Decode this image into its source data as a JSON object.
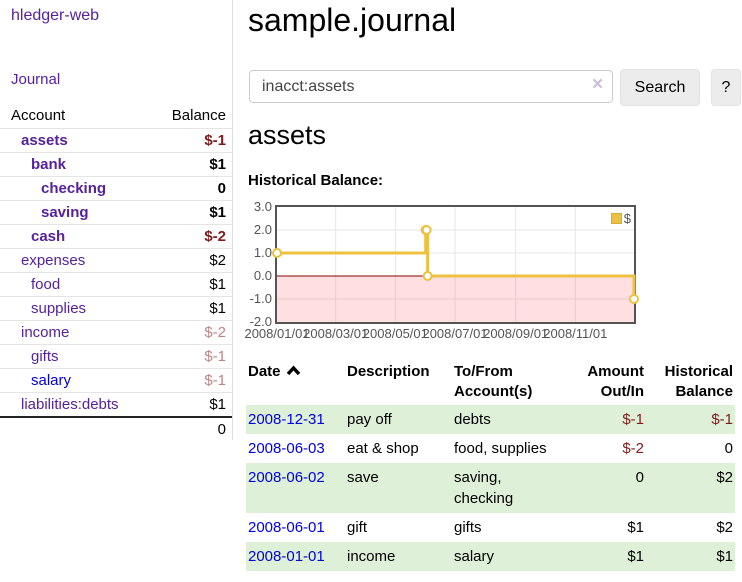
{
  "brand": "hledger-web",
  "nav": {
    "journal": "Journal"
  },
  "sidebar": {
    "col_account": "Account",
    "col_balance": "Balance",
    "rows": [
      {
        "account": "assets",
        "balance": "$-1",
        "indent": 0,
        "emphasis": true,
        "balance_class": "neg-strong",
        "link_color": "purple"
      },
      {
        "account": "bank",
        "balance": "$1",
        "indent": 1,
        "emphasis": true,
        "balance_class": "pos-strong",
        "link_color": "purple"
      },
      {
        "account": "checking",
        "balance": "0",
        "indent": 2,
        "emphasis": true,
        "balance_class": "pos-strong",
        "link_color": "purple"
      },
      {
        "account": "saving",
        "balance": "$1",
        "indent": 2,
        "emphasis": true,
        "balance_class": "pos-strong",
        "link_color": "purple"
      },
      {
        "account": "cash",
        "balance": "$-2",
        "indent": 1,
        "emphasis": true,
        "balance_class": "neg-strong",
        "link_color": "purple"
      },
      {
        "account": "expenses",
        "balance": "$2",
        "indent": 0,
        "emphasis": false,
        "balance_class": "pos",
        "link_color": "purple"
      },
      {
        "account": "food",
        "balance": "$1",
        "indent": 1,
        "emphasis": false,
        "balance_class": "pos",
        "link_color": "purple"
      },
      {
        "account": "supplies",
        "balance": "$1",
        "indent": 1,
        "emphasis": false,
        "balance_class": "pos",
        "link_color": "purple"
      },
      {
        "account": "income",
        "balance": "$-2",
        "indent": 0,
        "emphasis": false,
        "balance_class": "neg-soft",
        "link_color": "purple"
      },
      {
        "account": "gifts",
        "balance": "$-1",
        "indent": 1,
        "emphasis": false,
        "balance_class": "neg-soft",
        "link_color": "purple"
      },
      {
        "account": "salary",
        "balance": "$-1",
        "indent": 1,
        "emphasis": false,
        "balance_class": "neg-soft",
        "link_color": "blue"
      },
      {
        "account": "liabilities:debts",
        "balance": "$1",
        "indent": 0,
        "emphasis": false,
        "balance_class": "pos",
        "link_color": "purple"
      }
    ],
    "total": "0"
  },
  "header": {
    "title": "sample.journal"
  },
  "search": {
    "value": "inacct:assets",
    "clear_icon": "×",
    "button_label": "Search",
    "help_label": "?"
  },
  "account_page": {
    "heading": "assets",
    "chart_title": "Historical Balance:"
  },
  "chart_data": {
    "type": "line",
    "style": "step",
    "title": "Historical Balance:",
    "x_start": "2008-01-01",
    "x_end": "2008-12-31",
    "ylim": [
      -2.0,
      3.0
    ],
    "ytick_labels": [
      "3.0",
      "2.0",
      "1.0",
      "0.0",
      "-1.0",
      "-2.0"
    ],
    "ytick_values": [
      3,
      2,
      1,
      0,
      -1,
      -2
    ],
    "xtick_labels": [
      "2008/01/01",
      "2008/03/01",
      "2008/05/01",
      "2008/07/01",
      "2008/09/01",
      "2008/11/01"
    ],
    "xtick_dates": [
      "2008-01-01",
      "2008-03-01",
      "2008-05-01",
      "2008-07-01",
      "2008-09-01",
      "2008-11-01"
    ],
    "series": [
      {
        "name": "$",
        "color": "#edc240",
        "points": [
          {
            "date": "2008-01-01",
            "value": 1
          },
          {
            "date": "2008-06-01",
            "value": 2
          },
          {
            "date": "2008-06-02",
            "value": 2
          },
          {
            "date": "2008-06-03",
            "value": 0
          },
          {
            "date": "2008-12-31",
            "value": -1
          }
        ]
      }
    ],
    "legend": {
      "label": "$",
      "position": "top-right"
    },
    "grid": true,
    "grid_color": "#e6e6e6",
    "negative_region_fill": "rgba(255,80,80,0.18)",
    "zero_line_color": "#8b0000"
  },
  "register": {
    "columns": [
      "Date",
      "Description",
      "To/From Account(s)",
      "Amount Out/In",
      "Historical Balance"
    ],
    "sort": {
      "column": "Date",
      "direction": "ascending"
    },
    "rows": [
      {
        "date": "2008-12-31",
        "description": "pay off",
        "accounts": "debts",
        "amount": "$-1",
        "balance": "$-1",
        "amount_neg": true,
        "balance_neg": true
      },
      {
        "date": "2008-06-03",
        "description": "eat & shop",
        "accounts": "food, supplies",
        "amount": "$-2",
        "balance": "0",
        "amount_neg": true,
        "balance_neg": false
      },
      {
        "date": "2008-06-02",
        "description": "save",
        "accounts": "saving, checking",
        "amount": "0",
        "balance": "$2",
        "amount_neg": false,
        "balance_neg": false
      },
      {
        "date": "2008-06-01",
        "description": "gift",
        "accounts": "gifts",
        "amount": "$1",
        "balance": "$2",
        "amount_neg": false,
        "balance_neg": false
      },
      {
        "date": "2008-01-01",
        "description": "income",
        "accounts": "salary",
        "amount": "$1",
        "balance": "$1",
        "amount_neg": false,
        "balance_neg": false
      }
    ]
  },
  "colors": {
    "link_purple": "#55229b",
    "link_blue": "#0000e0",
    "negative_strong": "#7f1c1c",
    "negative_soft": "#c08383",
    "row_stripe_green": "#dff0d8",
    "chart_line": "#edc240"
  }
}
